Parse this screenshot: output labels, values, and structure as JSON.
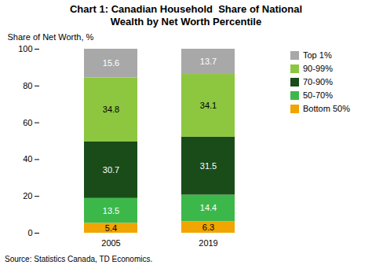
{
  "chart_data": {
    "type": "bar",
    "title": "Chart 1: Canadian Household  Share of National\nWealth by Net Worth Percentile",
    "ylabel": "Share of Net Worth, %",
    "source": "Source: Statistics Canada, TD Economics.",
    "categories": [
      "2005",
      "2019"
    ],
    "series": [
      {
        "name": "Bottom 50%",
        "color": "#f0a500",
        "values": [
          5.4,
          6.3
        ]
      },
      {
        "name": "50-70%",
        "color": "#3cb84a",
        "values": [
          13.5,
          14.4
        ]
      },
      {
        "name": "70-90%",
        "color": "#1a4c1a",
        "values": [
          30.7,
          31.5
        ]
      },
      {
        "name": "90-99%",
        "color": "#8dc63f",
        "values": [
          34.8,
          34.1
        ]
      },
      {
        "name": "Top 1%",
        "color": "#a8a8a8",
        "values": [
          15.6,
          13.7
        ]
      }
    ],
    "ylim": [
      0,
      100
    ],
    "yticks": [
      0,
      20,
      40,
      60,
      80,
      100
    ],
    "stacked": true,
    "data_labels": true,
    "grid": false,
    "legend": "right"
  }
}
